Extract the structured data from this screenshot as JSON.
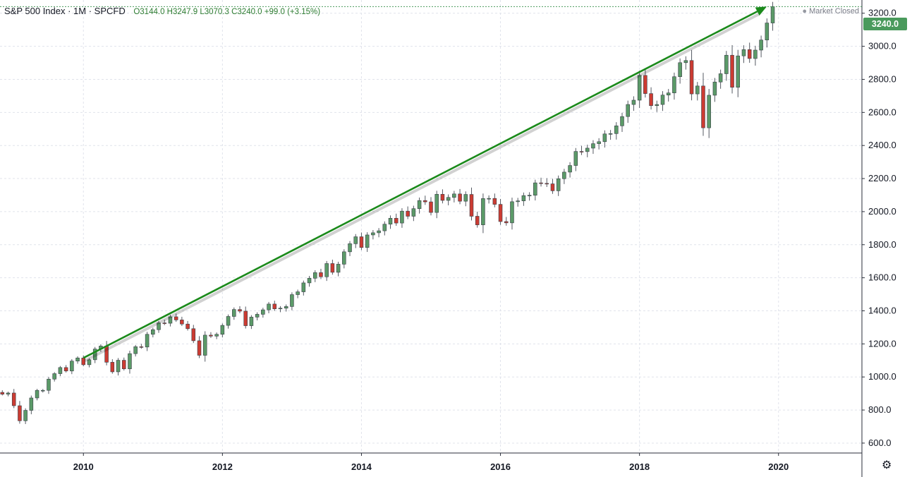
{
  "header": {
    "symbol": "S&P 500 Index · 1M · SPCFD",
    "ohlc": "O3144.0  H3247.9  L3070.3  C3240.0  +99.0 (+3.15%)"
  },
  "status": {
    "label": "Market Closed",
    "dot_icon": "dot-icon"
  },
  "last_price_label": "3240.0",
  "settings_icon": "gear-icon",
  "colors": {
    "up": "#5b9a68",
    "down": "#cc3b32",
    "arrow": "#1b8a1b",
    "grid": "#e0e3eb",
    "price_tag": "#4a9a5c"
  },
  "chart_data": {
    "type": "candlestick",
    "title": "",
    "xlabel": "",
    "ylabel": "",
    "x_range": [
      2008.8,
      2021.2
    ],
    "ylim": [
      540,
      3280
    ],
    "x_ticks": [
      {
        "value": 2010,
        "label": "2010"
      },
      {
        "value": 2012,
        "label": "2012"
      },
      {
        "value": 2014,
        "label": "2014"
      },
      {
        "value": 2016,
        "label": "2016"
      },
      {
        "value": 2018,
        "label": "2018"
      },
      {
        "value": 2020,
        "label": "2020"
      }
    ],
    "y_ticks": [
      {
        "value": 600,
        "label": "600.0"
      },
      {
        "value": 800,
        "label": "800.0"
      },
      {
        "value": 1000,
        "label": "1000.0"
      },
      {
        "value": 1200,
        "label": "1200.0"
      },
      {
        "value": 1400,
        "label": "1400.0"
      },
      {
        "value": 1600,
        "label": "1600.0"
      },
      {
        "value": 1800,
        "label": "1800.0"
      },
      {
        "value": 2000,
        "label": "2000.0"
      },
      {
        "value": 2200,
        "label": "2200.0"
      },
      {
        "value": 2400,
        "label": "2400.0"
      },
      {
        "value": 2600,
        "label": "2600.0"
      },
      {
        "value": 2800,
        "label": "2800.0"
      },
      {
        "value": 3000,
        "label": "3000.0"
      },
      {
        "value": 3200,
        "label": "3200.0"
      }
    ],
    "grid": true,
    "last_price": 3240.0,
    "start_month": "2008-11",
    "interval": "1M",
    "closes": [
      896,
      903,
      826,
      735,
      798,
      873,
      919,
      919,
      987,
      1020,
      1057,
      1036,
      1096,
      1115,
      1074,
      1104,
      1169,
      1187,
      1089,
      1031,
      1101,
      1049,
      1141,
      1183,
      1181,
      1258,
      1286,
      1327,
      1325,
      1364,
      1345,
      1320,
      1292,
      1219,
      1131,
      1253,
      1247,
      1258,
      1312,
      1366,
      1408,
      1398,
      1310,
      1362,
      1379,
      1406,
      1441,
      1412,
      1416,
      1426,
      1498,
      1515,
      1569,
      1597,
      1631,
      1606,
      1686,
      1633,
      1682,
      1757,
      1806,
      1848,
      1783,
      1859,
      1872,
      1884,
      1924,
      1960,
      1931,
      2003,
      1972,
      2018,
      2067,
      2059,
      1995,
      2105,
      2068,
      2086,
      2107,
      2063,
      2104,
      1972,
      1920,
      2079,
      2080,
      2044,
      1940,
      1932,
      2060,
      2065,
      2097,
      2099,
      2174,
      2171,
      2168,
      2126,
      2199,
      2239,
      2279,
      2364,
      2363,
      2384,
      2411,
      2423,
      2470,
      2472,
      2519,
      2575,
      2648,
      2674,
      2824,
      2714,
      2641,
      2648,
      2705,
      2718,
      2816,
      2901,
      2914,
      2712,
      2760,
      2507,
      2704,
      2784,
      2834,
      2946,
      2752,
      2942,
      2980,
      2926,
      2977,
      3038,
      3141,
      3240
    ],
    "arrow": {
      "from": {
        "x": 2010.0,
        "y": 1115
      },
      "to": {
        "x": 2019.83,
        "y": 3240
      }
    }
  }
}
